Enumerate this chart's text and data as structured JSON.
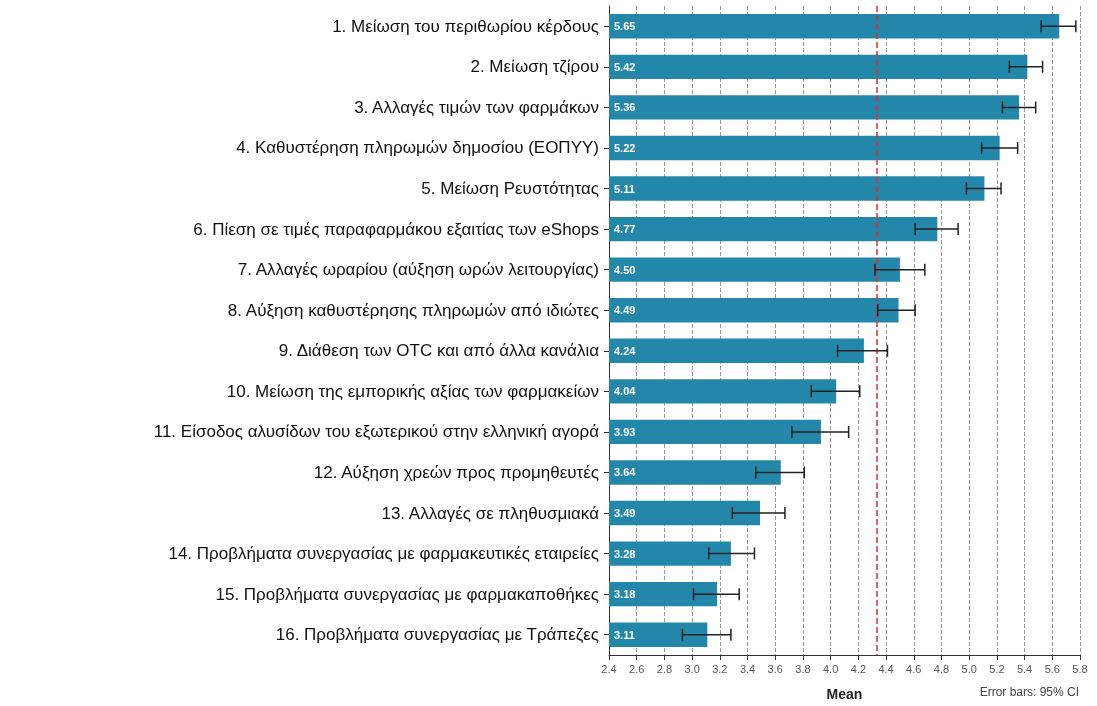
{
  "chart_data": {
    "type": "bar",
    "orientation": "horizontal",
    "xlabel": "Mean",
    "categories": [
      "1. Μείωση του περιθωρίου κέρδους",
      "2. Μείωση τζίρου",
      "3. Αλλαγές τιμών των φαρμάκων",
      "4. Καθυστέρηση πληρωμών δημοσίου (ΕΟΠΥΥ)",
      "5. Μείωση Ρευστότητας",
      "6. Πίεση σε τιμές παραφαρμάκου εξαιτίας των eShops",
      "7. Αλλαγές ωραρίου (αύξηση ωρών λειτουργίας)",
      "8. Αύξηση καθυστέρησης πληρωμών από ιδιώτες",
      "9. Διάθεση των OTC και από άλλα κανάλια",
      "10. Μείωση της εμπορικής αξίας των φαρμακείων",
      "11. Είσοδος αλυσίδων του εξωτερικού στην ελληνική αγορά",
      "12. Αύξηση χρεών προς προμηθευτές",
      "13. Αλλαγές σε πληθυσμιακά",
      "14. Προβλήματα συνεργασίας με φαρμακευτικές εταιρείες",
      "15. Προβλήματα συνεργασίας με φαρμακαποθήκες",
      "16. Προβλήματα συνεργασίας με Τράπεζες"
    ],
    "values": [
      5.65,
      5.42,
      5.36,
      5.22,
      5.11,
      4.77,
      4.5,
      4.49,
      4.24,
      4.04,
      3.93,
      3.64,
      3.49,
      3.28,
      3.18,
      3.11
    ],
    "value_labels": [
      "5.65",
      "5.42",
      "5.36",
      "5.22",
      "5.11",
      "4.77",
      "4.50",
      "4.49",
      "4.24",
      "4.04",
      "3.93",
      "3.64",
      "3.49",
      "3.28",
      "3.18",
      "3.11"
    ],
    "errors": [
      [
        5.52,
        5.77
      ],
      [
        5.29,
        5.53
      ],
      [
        5.24,
        5.48
      ],
      [
        5.09,
        5.35
      ],
      [
        4.98,
        5.23
      ],
      [
        4.61,
        4.92
      ],
      [
        4.32,
        4.68
      ],
      [
        4.34,
        4.61
      ],
      [
        4.05,
        4.41
      ],
      [
        3.86,
        4.21
      ],
      [
        3.72,
        4.13
      ],
      [
        3.46,
        3.81
      ],
      [
        3.29,
        3.67
      ],
      [
        3.12,
        3.45
      ],
      [
        3.01,
        3.34
      ],
      [
        2.93,
        3.28
      ]
    ],
    "color": "#2387aa",
    "xlim": [
      2.4,
      5.8
    ],
    "xticks": [
      2.4,
      2.6,
      2.8,
      {
        "value": 3,
        "label": "3.0"
      },
      3.2,
      3.4,
      3.6,
      3.8,
      {
        "value": 4,
        "label": "4.0"
      },
      4.2,
      4.4,
      4.6,
      4.8,
      {
        "value": 5,
        "label": "5.0"
      },
      5.2,
      5.4,
      5.6,
      5.8
    ],
    "ref_lines": [
      {
        "axis": "x",
        "value": 4.33,
        "color": "#e03030",
        "line_style": "dashed"
      }
    ],
    "grid": "x",
    "annotations": [
      "Error bars: 95% CI"
    ]
  }
}
